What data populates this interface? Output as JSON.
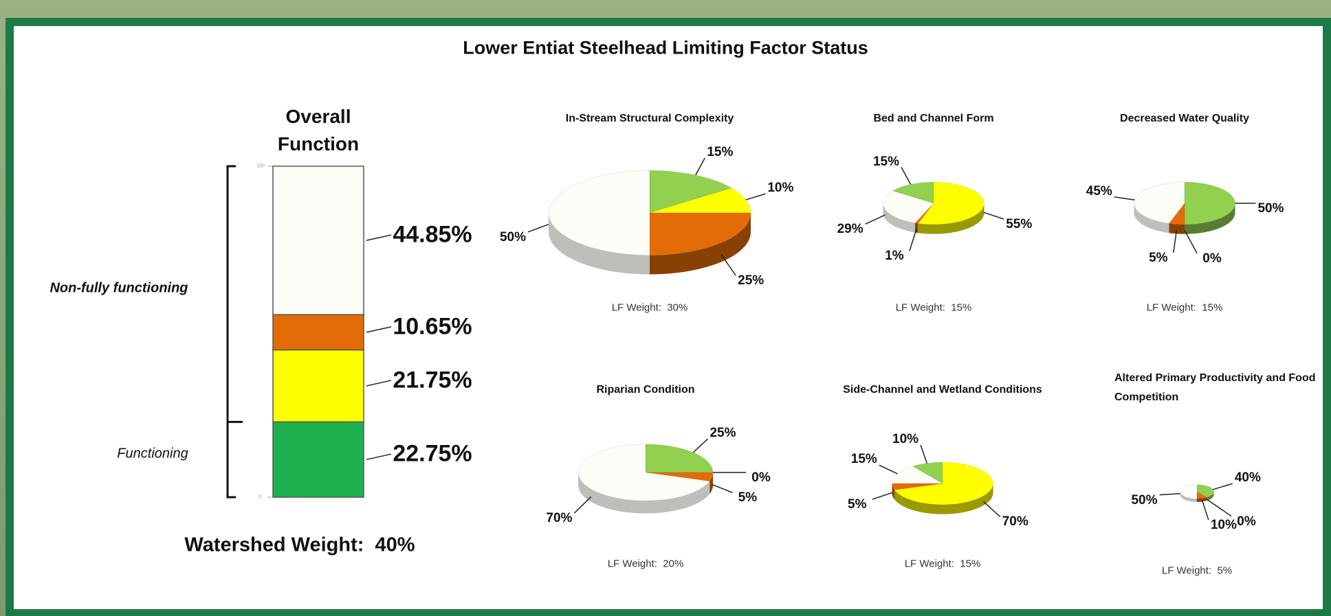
{
  "header": {
    "title": "Lower Entiat Steelhead Limiting Factor Status"
  },
  "chart_data": [
    {
      "type": "bar",
      "title": "Overall Function",
      "values": [
        22.75,
        21.75,
        10.65,
        44.85
      ],
      "value_labels": [
        "22.75%",
        "21.75%",
        "10.65%",
        "44.85%"
      ],
      "colors": [
        "#1fb050",
        "#ffff00",
        "#e36c09",
        "#fdfdf8"
      ],
      "ylim": [
        0,
        100
      ],
      "yticks": [
        0,
        100
      ],
      "annotations": [
        "Functioning",
        "Non-fully functioning"
      ],
      "footer": "Watershed Weight:  40%"
    },
    {
      "type": "pie",
      "title": "In-Stream Structural Complexity",
      "values": [
        15,
        10,
        25,
        50
      ],
      "value_labels": [
        "15%",
        "10%",
        "25%",
        "50%"
      ],
      "colors": [
        "#92d050",
        "#ffff00",
        "#e36c09",
        "#fdfdf8"
      ],
      "weight": 30,
      "weight_label": "LF Weight:  30%"
    },
    {
      "type": "pie",
      "title": "Bed and Channel Form",
      "values": [
        55,
        1,
        29,
        15
      ],
      "value_labels": [
        "55%",
        "1%",
        "29%",
        "15%"
      ],
      "colors": [
        "#ffff00",
        "#e36c09",
        "#fdfdf8",
        "#92d050"
      ],
      "weight": 15,
      "weight_label": "LF Weight:  15%"
    },
    {
      "type": "pie",
      "title": "Decreased Water Quality",
      "values": [
        50,
        0,
        5,
        45
      ],
      "value_labels": [
        "50%",
        "0%",
        "5%",
        "45%"
      ],
      "colors": [
        "#92d050",
        "#ffff00",
        "#e36c09",
        "#fdfdf8"
      ],
      "weight": 15,
      "weight_label": "LF Weight:  15%"
    },
    {
      "type": "pie",
      "title": "Riparian Condition",
      "values": [
        25,
        0,
        5,
        70
      ],
      "value_labels": [
        "25%",
        "0%",
        "5%",
        "70%"
      ],
      "colors": [
        "#92d050",
        "#ffff00",
        "#e36c09",
        "#fdfdf8"
      ],
      "weight": 20,
      "weight_label": "LF Weight:  20%"
    },
    {
      "type": "pie",
      "title": "Side-Channel and Wetland Conditions",
      "values": [
        70,
        5,
        15,
        10
      ],
      "value_labels": [
        "70%",
        "5%",
        "15%",
        "10%"
      ],
      "colors": [
        "#ffff00",
        "#e36c09",
        "#fdfdf8",
        "#92d050"
      ],
      "weight": 15,
      "weight_label": "LF Weight:  15%"
    },
    {
      "type": "pie",
      "title": "Altered Primary Productivity and Food Competition",
      "values": [
        40,
        0,
        10,
        50
      ],
      "value_labels": [
        "40%",
        "0%",
        "10%",
        "50%"
      ],
      "colors": [
        "#92d050",
        "#ffff00",
        "#e36c09",
        "#fdfdf8"
      ],
      "weight": 5,
      "weight_label": "LF Weight:  5%"
    }
  ]
}
